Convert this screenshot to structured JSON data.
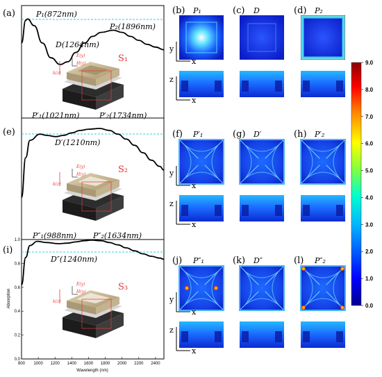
{
  "panels": {
    "a": {
      "label": "(a)",
      "peak1": "P₁(872nm)",
      "peak2": "P₂(1896nm)",
      "dip": "D(1264nm)",
      "structure": "S₁"
    },
    "e": {
      "label": "(e)",
      "peak1": "P′₁(1021nm)",
      "peak2": "P′₂(1734nm)",
      "dip": "D′(1210nm)",
      "structure": "S₂"
    },
    "i": {
      "label": "(i)",
      "peak1": "P″₁(988nm)",
      "peak2": "P″₂(1634nm)",
      "dip": "D″(1240nm)",
      "structure": "S₃"
    }
  },
  "field_maps": [
    {
      "label": "(b)",
      "title": "P₁"
    },
    {
      "label": "(c)",
      "title": "D"
    },
    {
      "label": "(d)",
      "title": "P₂"
    },
    {
      "label": "(f)",
      "title": "P′₁"
    },
    {
      "label": "(g)",
      "title": "D′"
    },
    {
      "label": "(h)",
      "title": "P′₂"
    },
    {
      "label": "(j)",
      "title": "P″₁"
    },
    {
      "label": "(k)",
      "title": "D″"
    },
    {
      "label": "(l)",
      "title": "P″₂"
    }
  ],
  "field_axes": {
    "y": "y",
    "x": "x",
    "z": "z"
  },
  "inset_labels": {
    "e_field": "E(y)",
    "h_field": "H(y)",
    "k_vec": "k(z)"
  },
  "colorbar": {
    "ticks": [
      "9.0",
      "8.0",
      "7.0",
      "6.0",
      "5.0",
      "4.0",
      "3.0",
      "2.0",
      "1.0",
      "0.0"
    ]
  },
  "chart_data": [
    {
      "type": "line",
      "panel": "a",
      "xlim": [
        800,
        2500
      ],
      "ylim": [
        0,
        1
      ],
      "x": [
        800,
        850,
        872,
        950,
        1050,
        1150,
        1264,
        1350,
        1450,
        1550,
        1650,
        1750,
        1896,
        2000,
        2100,
        2200,
        2300,
        2400,
        2500
      ],
      "y": [
        0.9,
        0.985,
        0.99,
        0.965,
        0.9,
        0.845,
        0.82,
        0.83,
        0.865,
        0.9,
        0.925,
        0.94,
        0.948,
        0.94,
        0.925,
        0.91,
        0.895,
        0.885,
        0.875
      ],
      "ref_line": 0.95
    },
    {
      "type": "line",
      "panel": "e",
      "xlim": [
        800,
        2500
      ],
      "ylim": [
        0,
        1
      ],
      "x": [
        800,
        850,
        900,
        1021,
        1100,
        1210,
        1300,
        1400,
        1500,
        1600,
        1734,
        1850,
        1950,
        2050,
        2150,
        2250,
        2350,
        2450,
        2500
      ],
      "y": [
        0.72,
        0.88,
        0.95,
        0.975,
        0.97,
        0.965,
        0.97,
        0.98,
        0.99,
        0.995,
        0.998,
        0.99,
        0.975,
        0.955,
        0.93,
        0.9,
        0.87,
        0.845,
        0.83
      ],
      "ref_line": 0.95
    },
    {
      "type": "line",
      "panel": "i",
      "xlim": [
        800,
        2500
      ],
      "ylim": [
        0,
        1
      ],
      "xlabel": "Wavelength (nm)",
      "ylabel": "Absorption",
      "xticks": [
        "800",
        "1000",
        "1200",
        "1400",
        "1600",
        "1800",
        "2000",
        "2200",
        "2400"
      ],
      "yticks": [
        "0.0",
        "0.2",
        "0.4",
        "0.6",
        "0.8",
        "1.0"
      ],
      "x": [
        800,
        850,
        900,
        988,
        1100,
        1240,
        1350,
        1450,
        1550,
        1634,
        1750,
        1850,
        1950,
        2050,
        2150,
        2250,
        2350,
        2450,
        2500
      ],
      "y": [
        0.62,
        0.85,
        0.95,
        0.985,
        0.975,
        0.965,
        0.97,
        0.98,
        0.99,
        0.995,
        0.99,
        0.975,
        0.955,
        0.93,
        0.905,
        0.88,
        0.86,
        0.845,
        0.835
      ],
      "ref_line": 0.9
    }
  ]
}
